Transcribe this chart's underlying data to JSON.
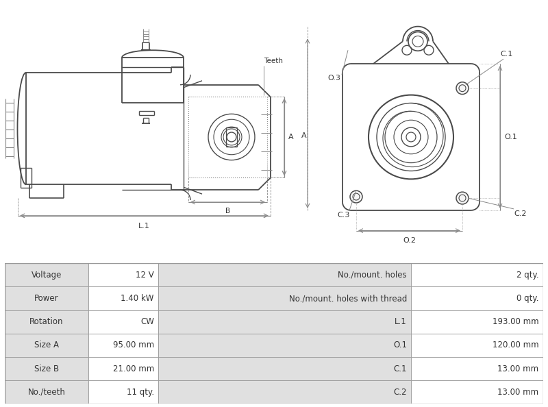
{
  "table_rows": [
    [
      "Voltage",
      "12 V",
      "No./mount. holes",
      "2 qty."
    ],
    [
      "Power",
      "1.40 kW",
      "No./mount. holes with thread",
      "0 qty."
    ],
    [
      "Rotation",
      "CW",
      "L.1",
      "193.00 mm"
    ],
    [
      "Size A",
      "95.00 mm",
      "O.1",
      "120.00 mm"
    ],
    [
      "Size B",
      "21.00 mm",
      "C.1",
      "13.00 mm"
    ],
    [
      "No./teeth",
      "11 qty.",
      "C.2",
      "13.00 mm"
    ]
  ],
  "bg_color": "#ffffff",
  "table_bg_light": "#e0e0e0",
  "table_border_color": "#999999",
  "line_color": "#4a4a4a",
  "dim_line_color": "#888888",
  "text_color": "#333333",
  "font_size_table": 8.5
}
